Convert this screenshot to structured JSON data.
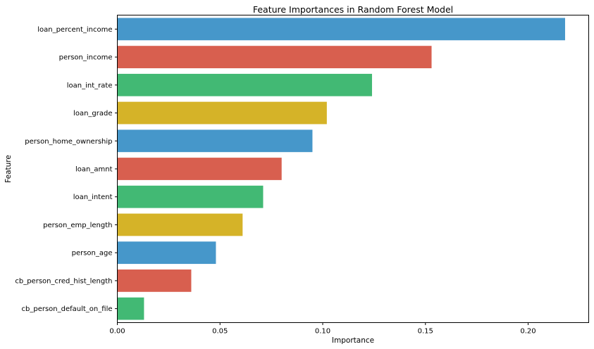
{
  "chart_data": {
    "type": "bar",
    "orientation": "horizontal",
    "title": "Feature Importances in Random Forest Model",
    "xlabel": "Importance",
    "ylabel": "Feature",
    "xlim": [
      0,
      0.2295
    ],
    "xticks": [
      0.0,
      0.05,
      0.1,
      0.15,
      0.2
    ],
    "xtick_labels": [
      "0.00",
      "0.05",
      "0.10",
      "0.15",
      "0.20"
    ],
    "grid": false,
    "categories": [
      "loan_percent_income",
      "person_income",
      "loan_int_rate",
      "loan_grade",
      "person_home_ownership",
      "loan_amnt",
      "loan_intent",
      "person_emp_length",
      "person_age",
      "cb_person_cred_hist_length",
      "cb_person_default_on_file"
    ],
    "values": [
      0.218,
      0.153,
      0.124,
      0.102,
      0.095,
      0.08,
      0.071,
      0.061,
      0.048,
      0.036,
      0.013
    ],
    "colors": [
      "#4697ca",
      "#d85f4f",
      "#42b974",
      "#d5b328"
    ]
  }
}
